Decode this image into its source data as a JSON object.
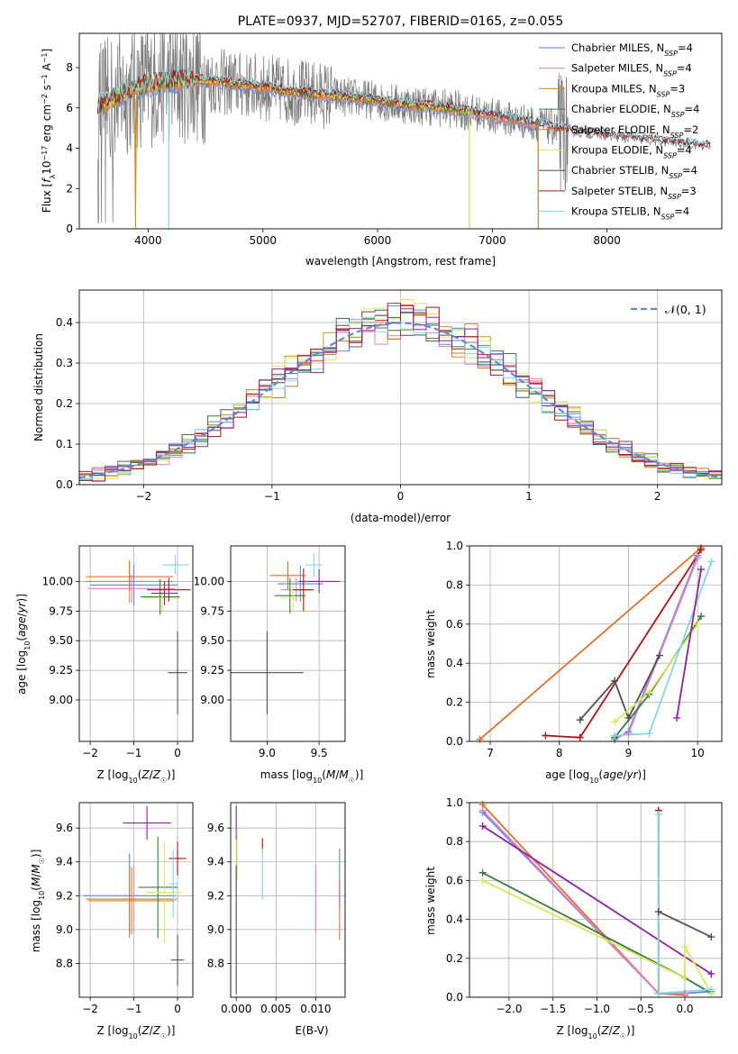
{
  "colors": {
    "chabrier_miles": "#5b8bd8",
    "salpeter_miles": "#e080c8",
    "kroupa_miles": "#c8901a",
    "chabrier_elodie": "#3c7a3c",
    "salpeter_elodie": "#e07030",
    "kroupa_elodie": "#d8e860",
    "chabrier_stelib": "#505050",
    "salpeter_stelib": "#b01010",
    "kroupa_stelib": "#80d8e0",
    "purple": "#9020a0",
    "gray_spectrum": "#7a7a7a",
    "normal_curve": "#5b8bd8",
    "grid": "#b0b0b0"
  },
  "chart_data": [
    {
      "id": "spectrum",
      "type": "line",
      "title": "PLATE=0937, MJD=52707, FIBERID=0165, z=0.055",
      "xlabel": "wavelength [Angstrom, rest frame]",
      "ylabel": "Flux [f_λ10^-17 erg cm^-2 s^-1 A^-1]",
      "xlim": [
        3400,
        9000
      ],
      "ylim": [
        0,
        9.7
      ],
      "xticks": [
        4000,
        5000,
        6000,
        7000,
        8000
      ],
      "yticks": [
        0,
        2,
        4,
        6,
        8
      ],
      "grid": false,
      "legend": "top-right",
      "legend_entries": [
        {
          "base": "Chabrier MILES, N",
          "sub": "SSP",
          "tail": "=4",
          "color": "chabrier_miles"
        },
        {
          "base": "Salpeter MILES, N",
          "sub": "SSP",
          "tail": "=4",
          "color": "salpeter_miles"
        },
        {
          "base": "Kroupa MILES, N",
          "sub": "SSP",
          "tail": "=3",
          "color": "kroupa_miles"
        },
        {
          "base": "Chabrier ELODIE, N",
          "sub": "SSP",
          "tail": "=4",
          "color": "chabrier_elodie"
        },
        {
          "base": "Salpeter ELODIE, N",
          "sub": "SSP",
          "tail": "=2",
          "color": "salpeter_elodie"
        },
        {
          "base": "Kroupa ELODIE, N",
          "sub": "SSP",
          "tail": "=4",
          "color": "kroupa_elodie"
        },
        {
          "base": "Chabrier STELIB, N",
          "sub": "SSP",
          "tail": "=4",
          "color": "chabrier_stelib"
        },
        {
          "base": "Salpeter STELIB, N",
          "sub": "SSP",
          "tail": "=3",
          "color": "salpeter_stelib"
        },
        {
          "base": "Kroupa STELIB, N",
          "sub": "SSP",
          "tail": "=4",
          "color": "kroupa_stelib"
        }
      ],
      "continuum": {
        "x": [
          3550,
          3700,
          3900,
          4100,
          4300,
          4600,
          5000,
          5400,
          5800,
          6200,
          6600,
          7000,
          7400,
          7600,
          8000,
          8500,
          8900
        ],
        "y": [
          6.0,
          6.5,
          7.0,
          7.3,
          7.4,
          7.3,
          7.0,
          6.7,
          6.5,
          6.2,
          6.0,
          5.6,
          5.2,
          4.9,
          4.6,
          4.3,
          4.1
        ]
      }
    },
    {
      "id": "residuals",
      "type": "histogram",
      "xlabel": "(data-model)/error",
      "ylabel": "Normed distribution",
      "xlim": [
        -2.5,
        2.5
      ],
      "ylim": [
        0,
        0.48
      ],
      "xticks": [
        -2,
        -1,
        0,
        1,
        2
      ],
      "yticks": [
        0.0,
        0.1,
        0.2,
        0.3,
        0.4
      ],
      "grid": true,
      "legend": "top-right",
      "legend_label": "𝒩(0, 1)",
      "bin_width": 0.1
    },
    {
      "id": "age_vs_Z",
      "type": "errorbar",
      "xlabel": "Z [log10(Z/Z☉)]",
      "ylabel": "age  [log10(age/yr)]",
      "xlim": [
        -2.25,
        0.35
      ],
      "ylim": [
        8.65,
        10.3
      ],
      "xticks": [
        -2,
        -1,
        0
      ],
      "yticks": [
        9.0,
        9.25,
        9.5,
        9.75,
        10.0
      ],
      "grid": true,
      "points": [
        {
          "c": "chabrier_miles",
          "x": -1.0,
          "xe": 1.0,
          "y": 9.97,
          "ye": 0.17
        },
        {
          "c": "salpeter_miles",
          "x": -1.05,
          "xe": 1.0,
          "y": 9.94,
          "ye": 0.12
        },
        {
          "c": "kroupa_miles",
          "x": -1.1,
          "xe": 1.0,
          "y": 10.0,
          "ye": 0.18
        },
        {
          "c": "salpeter_elodie",
          "x": -1.1,
          "xe": 1.0,
          "y": 10.04,
          "ye": 0.12
        },
        {
          "c": "chabrier_elodie",
          "x": -0.4,
          "xe": 0.45,
          "y": 9.87,
          "ye": 0.15
        },
        {
          "c": "kroupa_elodie",
          "x": -0.35,
          "xe": 0.4,
          "y": 9.86,
          "ye": 0.12
        },
        {
          "c": "salpeter_stelib",
          "x": -0.2,
          "xe": 0.5,
          "y": 9.93,
          "ye": 0.1
        },
        {
          "c": "kroupa_stelib",
          "x": -0.05,
          "xe": 0.3,
          "y": 10.14,
          "ye": 0.08
        },
        {
          "c": "chabrier_stelib",
          "x": 0.0,
          "xe": 0.22,
          "y": 9.23,
          "ye": 0.35
        },
        {
          "c": "purple",
          "x": -0.3,
          "xe": 0.3,
          "y": 9.9,
          "ye": 0.1
        }
      ]
    },
    {
      "id": "age_vs_mass",
      "type": "errorbar",
      "xlabel": "mass [log10(M/M☉)]",
      "ylabel": "",
      "xlim": [
        8.65,
        9.75
      ],
      "ylim": [
        8.65,
        10.3
      ],
      "xticks": [
        9.0,
        9.5
      ],
      "yticks": [
        9.0,
        9.25,
        9.5,
        9.75,
        10.0
      ],
      "grid": true,
      "points": [
        {
          "c": "chabrier_miles",
          "x": 9.32,
          "xe": 0.22,
          "y": 9.98,
          "ye": 0.15
        },
        {
          "c": "salpeter_miles",
          "x": 9.28,
          "xe": 0.15,
          "y": 9.93,
          "ye": 0.1
        },
        {
          "c": "kroupa_miles",
          "x": 9.2,
          "xe": 0.15,
          "y": 10.05,
          "ye": 0.12
        },
        {
          "c": "salpeter_elodie",
          "x": 9.2,
          "xe": 0.18,
          "y": 10.05,
          "ye": 0.12
        },
        {
          "c": "chabrier_elodie",
          "x": 9.22,
          "xe": 0.15,
          "y": 9.88,
          "ye": 0.15
        },
        {
          "c": "kroupa_elodie",
          "x": 9.25,
          "xe": 0.12,
          "y": 9.86,
          "ye": 0.12
        },
        {
          "c": "salpeter_stelib",
          "x": 9.35,
          "xe": 0.1,
          "y": 9.93,
          "ye": 0.18
        },
        {
          "c": "kroupa_stelib",
          "x": 9.45,
          "xe": 0.08,
          "y": 10.14,
          "ye": 0.1
        },
        {
          "c": "chabrier_stelib",
          "x": 9.0,
          "xe": 0.35,
          "y": 9.23,
          "ye": 0.35
        },
        {
          "c": "purple",
          "x": 9.5,
          "xe": 0.2,
          "y": 10.0,
          "ye": 0.1
        }
      ]
    },
    {
      "id": "weight_vs_age",
      "type": "line",
      "xlabel": "age  [log10(age/yr)]",
      "ylabel": "mass weight",
      "xlim": [
        6.7,
        10.35
      ],
      "ylim": [
        0,
        1
      ],
      "xticks": [
        7,
        8,
        9,
        10
      ],
      "yticks": [
        0.0,
        0.2,
        0.4,
        0.6,
        0.8,
        1.0
      ],
      "grid": true,
      "series": [
        {
          "c": "salpeter_elodie",
          "x": [
            6.85,
            10.05
          ],
          "y": [
            0.01,
            0.99
          ]
        },
        {
          "c": "salpeter_stelib",
          "x": [
            7.8,
            8.3,
            10.05
          ],
          "y": [
            0.03,
            0.02,
            0.98
          ]
        },
        {
          "c": "chabrier_miles",
          "x": [
            8.8,
            9.0,
            10.0
          ],
          "y": [
            0.01,
            0.05,
            0.95
          ]
        },
        {
          "c": "salpeter_miles",
          "x": [
            8.8,
            9.0,
            10.0
          ],
          "y": [
            0.02,
            0.04,
            0.94
          ]
        },
        {
          "c": "chabrier_stelib",
          "x": [
            8.3,
            8.8,
            9.0,
            9.45
          ],
          "y": [
            0.11,
            0.31,
            0.12,
            0.44
          ]
        },
        {
          "c": "chabrier_elodie",
          "x": [
            8.8,
            9.3,
            10.05
          ],
          "y": [
            0.02,
            0.24,
            0.64
          ]
        },
        {
          "c": "kroupa_elodie",
          "x": [
            8.8,
            9.3,
            10.0
          ],
          "y": [
            0.1,
            0.25,
            0.6
          ]
        },
        {
          "c": "kroupa_stelib",
          "x": [
            8.8,
            9.3,
            10.2
          ],
          "y": [
            0.03,
            0.04,
            0.92
          ]
        },
        {
          "c": "purple",
          "x": [
            9.7,
            10.05
          ],
          "y": [
            0.12,
            0.88
          ]
        }
      ]
    },
    {
      "id": "mass_vs_Z",
      "type": "errorbar",
      "xlabel": "Z [log10(Z/Z☉)]",
      "ylabel": "mass [log10(M/M☉)]",
      "xlim": [
        -2.25,
        0.35
      ],
      "ylim": [
        8.6,
        9.75
      ],
      "xticks": [
        -2,
        -1,
        0
      ],
      "yticks": [
        8.8,
        9.0,
        9.2,
        9.4,
        9.6
      ],
      "grid": true,
      "points": [
        {
          "c": "chabrier_miles",
          "x": -1.1,
          "xe": 1.05,
          "y": 9.2,
          "ye": 0.25
        },
        {
          "c": "salpeter_miles",
          "x": -1.0,
          "xe": 1.0,
          "y": 9.18,
          "ye": 0.2
        },
        {
          "c": "kroupa_miles",
          "x": -1.05,
          "xe": 1.0,
          "y": 9.17,
          "ye": 0.2
        },
        {
          "c": "salpeter_elodie",
          "x": -1.1,
          "xe": 1.0,
          "y": 9.18,
          "ye": 0.2
        },
        {
          "c": "chabrier_elodie",
          "x": -0.45,
          "xe": 0.45,
          "y": 9.25,
          "ye": 0.3
        },
        {
          "c": "kroupa_elodie",
          "x": -0.3,
          "xe": 0.4,
          "y": 9.22,
          "ye": 0.3
        },
        {
          "c": "purple",
          "x": -0.7,
          "xe": 0.55,
          "y": 9.63,
          "ye": 0.1
        },
        {
          "c": "salpeter_stelib",
          "x": 0.0,
          "xe": 0.2,
          "y": 9.42,
          "ye": 0.1
        },
        {
          "c": "kroupa_stelib",
          "x": -0.1,
          "xe": 0.1,
          "y": 9.27,
          "ye": 0.2
        },
        {
          "c": "chabrier_stelib",
          "x": 0.0,
          "xe": 0.15,
          "y": 8.82,
          "ye": 0.15
        }
      ]
    },
    {
      "id": "mass_vs_ebv",
      "type": "errorbar",
      "xlabel": "E(B-V)",
      "ylabel": "",
      "xlim": [
        -0.0007,
        0.0137
      ],
      "ylim": [
        8.6,
        9.75
      ],
      "xticks": [
        0.0,
        0.005,
        0.01
      ],
      "yticks": [
        8.8,
        9.0,
        9.2,
        9.4,
        9.6
      ],
      "grid": true,
      "points": [
        {
          "c": "purple",
          "x": 0.0,
          "xe": 0,
          "y": 9.63,
          "ye": 0.1
        },
        {
          "c": "kroupa_elodie",
          "x": 0.0001,
          "xe": 0,
          "y": 9.45,
          "ye": 0.15
        },
        {
          "c": "chabrier_stelib",
          "x": 0.0,
          "xe": 0,
          "y": 9.0,
          "ye": 0.38
        },
        {
          "c": "salpeter_stelib",
          "x": 0.0033,
          "xe": 0,
          "y": 9.5,
          "ye": 0.04
        },
        {
          "c": "kroupa_stelib",
          "x": 0.0033,
          "xe": 0,
          "y": 9.33,
          "ye": 0.15
        },
        {
          "c": "salpeter_miles",
          "x": 0.01,
          "xe": 0,
          "y": 9.18,
          "ye": 0.2
        },
        {
          "c": "chabrier_miles",
          "x": 0.013,
          "xe": 0,
          "y": 9.3,
          "ye": 0.18
        },
        {
          "c": "salpeter_elodie",
          "x": 0.013,
          "xe": 0,
          "y": 9.12,
          "ye": 0.18
        }
      ]
    },
    {
      "id": "weight_vs_Z",
      "type": "line",
      "xlabel": "Z [log10(Z/Z☉)]",
      "ylabel": "mass weight",
      "xlim": [
        -2.45,
        0.42
      ],
      "ylim": [
        0,
        1
      ],
      "xticks": [
        -2.0,
        -1.5,
        -1.0,
        -0.5,
        0.0
      ],
      "yticks": [
        0.0,
        0.2,
        0.4,
        0.6,
        0.8,
        1.0
      ],
      "grid": true,
      "series": [
        {
          "c": "salpeter_elodie",
          "x": [
            -2.3,
            -0.3,
            0.0
          ],
          "y": [
            0.99,
            0.02,
            0.01
          ]
        },
        {
          "c": "chabrier_miles",
          "x": [
            -2.3,
            -0.3,
            0.0,
            0.3
          ],
          "y": [
            0.95,
            0.02,
            0.02,
            0.03
          ]
        },
        {
          "c": "salpeter_miles",
          "x": [
            -2.3,
            -0.3,
            0.0
          ],
          "y": [
            0.96,
            0.02,
            0.02
          ]
        },
        {
          "c": "purple",
          "x": [
            -2.3,
            0.3
          ],
          "y": [
            0.88,
            0.12
          ]
        },
        {
          "c": "chabrier_elodie",
          "x": [
            -2.3,
            0.0,
            0.3
          ],
          "y": [
            0.64,
            0.1,
            0.02
          ]
        },
        {
          "c": "kroupa_elodie",
          "x": [
            -2.3,
            0.0,
            0.0,
            0.3
          ],
          "y": [
            0.6,
            0.1,
            0.26,
            0.02
          ]
        },
        {
          "c": "chabrier_stelib",
          "x": [
            -0.3,
            0.3
          ],
          "y": [
            0.44,
            0.31
          ]
        },
        {
          "c": "salpeter_stelib",
          "x": [
            -0.3,
            -0.3
          ],
          "y": [
            0.96,
            0.02
          ]
        },
        {
          "c": "kroupa_stelib",
          "x": [
            -0.3,
            -0.3,
            0.3
          ],
          "y": [
            0.94,
            0.02,
            0.04
          ]
        }
      ]
    }
  ]
}
